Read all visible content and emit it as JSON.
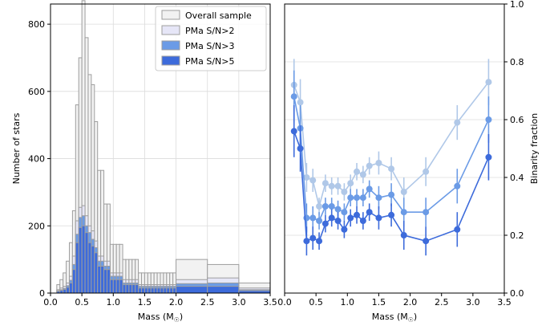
{
  "chart_data": [
    {
      "type": "bar",
      "xlabel": "Mass (M",
      "xlabel_suffix": ")",
      "ylabel": "Number of stars",
      "xlim": [
        0,
        3.5
      ],
      "ylim": [
        0,
        860
      ],
      "xticks": [
        "0.0",
        "0.5",
        "1.0",
        "1.5",
        "2.0",
        "2.5",
        "3.0",
        "3.5"
      ],
      "yticks": [
        "0",
        "200",
        "400",
        "600",
        "800"
      ],
      "grid": true,
      "legend_position": "top-right",
      "bin_edges": [
        0.1,
        0.15,
        0.2,
        0.25,
        0.3,
        0.35,
        0.4,
        0.45,
        0.5,
        0.55,
        0.6,
        0.65,
        0.7,
        0.75,
        0.8,
        0.85,
        0.9,
        0.95,
        1.0,
        1.05,
        1.1,
        1.15,
        1.2,
        1.25,
        1.3,
        1.35,
        1.4,
        1.45,
        1.5,
        1.55,
        1.6,
        1.65,
        1.7,
        1.75,
        1.8,
        1.85,
        1.9,
        1.95,
        2.0,
        2.5,
        3.0,
        3.5
      ],
      "colors": [
        "#f2f2f2",
        "#e6e6f7",
        "#6b9be6",
        "#3d6bdb"
      ],
      "edgecolor": "#9e9e9e",
      "series": [
        {
          "name": "Overall sample",
          "values": [
            25,
            40,
            60,
            95,
            150,
            245,
            560,
            700,
            870,
            760,
            650,
            620,
            510,
            365,
            365,
            265,
            265,
            145,
            145,
            145,
            145,
            100,
            100,
            100,
            100,
            100,
            60,
            60,
            60,
            60,
            60,
            60,
            60,
            60,
            60,
            60,
            60,
            60,
            100,
            85,
            30
          ]
        },
        {
          "name": "PMa S/N>2",
          "values": [
            10,
            15,
            20,
            30,
            50,
            110,
            215,
            255,
            260,
            230,
            200,
            185,
            155,
            110,
            110,
            95,
            95,
            60,
            60,
            60,
            60,
            40,
            40,
            40,
            40,
            40,
            25,
            25,
            25,
            25,
            25,
            25,
            25,
            25,
            25,
            25,
            25,
            25,
            40,
            45,
            15
          ]
        },
        {
          "name": "PMa S/N>3",
          "values": [
            7,
            10,
            14,
            22,
            38,
            85,
            175,
            225,
            230,
            200,
            180,
            160,
            135,
            95,
            95,
            80,
            80,
            50,
            50,
            50,
            50,
            30,
            30,
            30,
            30,
            30,
            20,
            20,
            20,
            20,
            20,
            20,
            20,
            20,
            20,
            20,
            20,
            20,
            28,
            30,
            10
          ]
        },
        {
          "name": "PMa S/N>5",
          "values": [
            5,
            8,
            11,
            17,
            30,
            70,
            150,
            195,
            200,
            180,
            150,
            140,
            120,
            80,
            80,
            70,
            70,
            40,
            40,
            40,
            40,
            25,
            25,
            25,
            25,
            25,
            15,
            15,
            15,
            15,
            15,
            15,
            15,
            15,
            15,
            15,
            15,
            15,
            20,
            20,
            7
          ]
        }
      ]
    },
    {
      "type": "scatter",
      "xlabel": "Mass (M",
      "xlabel_suffix": ")",
      "ylabel": "Binarity fraction",
      "xlim": [
        0,
        3.5
      ],
      "ylim": [
        0,
        1.0
      ],
      "xticks": [
        "0.0",
        "0.5",
        "1.0",
        "1.5",
        "2.0",
        "2.5",
        "3.0",
        "3.5"
      ],
      "yticks": [
        "0.0",
        "0.2",
        "0.4",
        "0.6",
        "0.8",
        "1.0"
      ],
      "y_axis_side": "right",
      "grid": true,
      "x": [
        0.15,
        0.25,
        0.35,
        0.45,
        0.55,
        0.65,
        0.75,
        0.85,
        0.95,
        1.05,
        1.15,
        1.25,
        1.35,
        1.5,
        1.7,
        1.9,
        2.25,
        2.75,
        3.25
      ],
      "colors": [
        "#b0c8e8",
        "#6b9be6",
        "#3d6bdb"
      ],
      "series": [
        {
          "name": "PMa S/N>2",
          "values": [
            0.72,
            0.66,
            0.4,
            0.39,
            0.3,
            0.38,
            0.37,
            0.37,
            0.35,
            0.38,
            0.42,
            0.41,
            0.44,
            0.45,
            0.43,
            0.35,
            0.42,
            0.59,
            0.73
          ],
          "errors": [
            0.09,
            0.08,
            0.05,
            0.04,
            0.03,
            0.03,
            0.03,
            0.03,
            0.03,
            0.03,
            0.03,
            0.03,
            0.03,
            0.04,
            0.04,
            0.05,
            0.05,
            0.06,
            0.08
          ]
        },
        {
          "name": "PMa S/N>3",
          "values": [
            0.68,
            0.57,
            0.26,
            0.26,
            0.25,
            0.3,
            0.3,
            0.29,
            0.28,
            0.33,
            0.33,
            0.33,
            0.36,
            0.33,
            0.34,
            0.28,
            0.28,
            0.37,
            0.6
          ],
          "errors": [
            0.09,
            0.08,
            0.05,
            0.04,
            0.03,
            0.03,
            0.03,
            0.03,
            0.03,
            0.03,
            0.03,
            0.03,
            0.03,
            0.04,
            0.04,
            0.05,
            0.05,
            0.06,
            0.08
          ]
        },
        {
          "name": "PMa S/N>5",
          "values": [
            0.56,
            0.5,
            0.18,
            0.19,
            0.18,
            0.24,
            0.26,
            0.25,
            0.22,
            0.26,
            0.27,
            0.25,
            0.28,
            0.26,
            0.27,
            0.2,
            0.18,
            0.22,
            0.47
          ],
          "errors": [
            0.09,
            0.08,
            0.05,
            0.04,
            0.03,
            0.03,
            0.03,
            0.03,
            0.03,
            0.03,
            0.03,
            0.03,
            0.03,
            0.04,
            0.04,
            0.05,
            0.05,
            0.06,
            0.08
          ]
        }
      ]
    }
  ]
}
